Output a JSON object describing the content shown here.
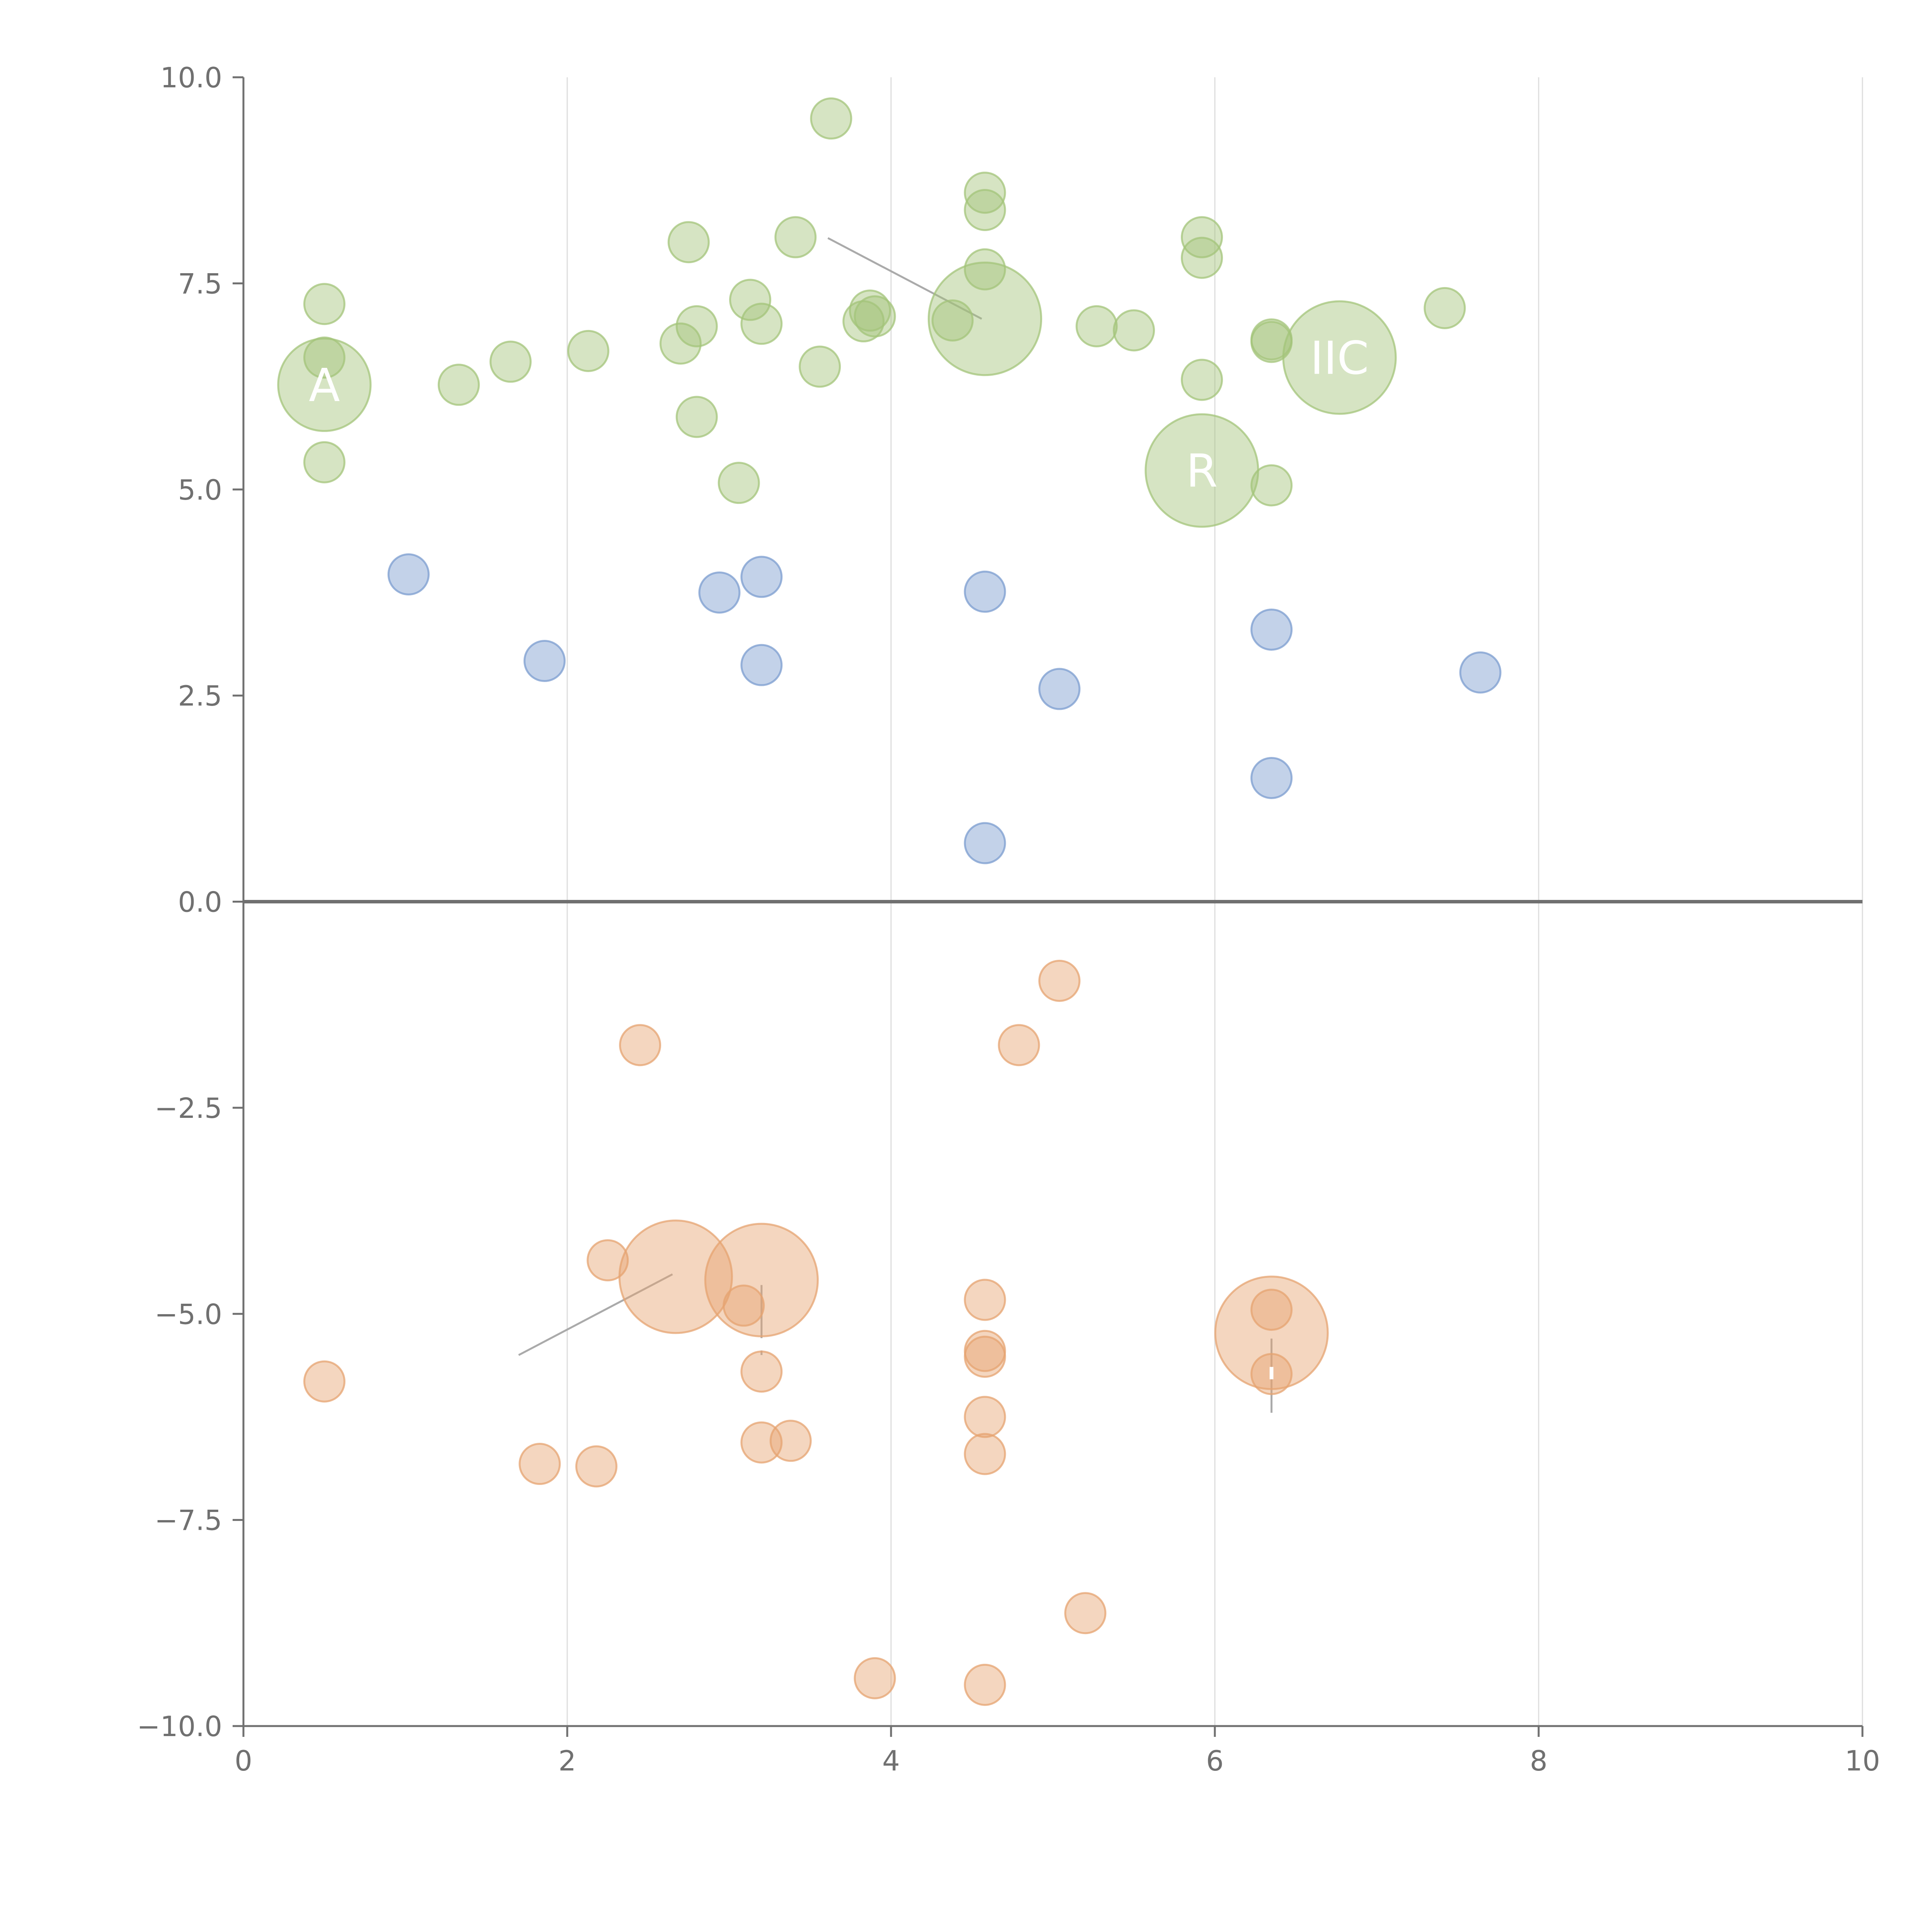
{
  "chart_data": {
    "type": "scatter",
    "title": "",
    "xlabel": "",
    "ylabel": "",
    "xlim": [
      0,
      10
    ],
    "ylim": [
      -10,
      10
    ],
    "x_ticks": [
      0,
      2,
      4,
      6,
      8,
      10
    ],
    "x_tick_labels": [
      "0",
      "2",
      "4",
      "6",
      "8",
      "10"
    ],
    "y_ticks": [
      10,
      7.5,
      5,
      2.5,
      0,
      -2.5,
      -5,
      -7.5,
      -10
    ],
    "y_tick_labels": [
      "10.0",
      "7.5",
      "5.0",
      "2.5",
      "0.0",
      "−2.5",
      "−5.0",
      "−7.5",
      "−10.0"
    ],
    "grid": "vertical",
    "zero_line": true,
    "colors": {
      "green": "#a3c47a",
      "blue": "#7b9ccf",
      "orange": "#e6a370",
      "grid": "#dddddd",
      "axis": "#707070",
      "leader": "#aaaaaa"
    },
    "series": [
      {
        "name": "green",
        "color": "#a3c47a",
        "points": [
          {
            "x": 0.5,
            "y": 7.25,
            "s": 1
          },
          {
            "x": 0.5,
            "y": 6.6,
            "s": 1
          },
          {
            "x": 0.5,
            "y": 6.27,
            "s": 2.3
          },
          {
            "x": 0.5,
            "y": 5.33,
            "s": 1
          },
          {
            "x": 1.33,
            "y": 6.27,
            "s": 1
          },
          {
            "x": 1.65,
            "y": 6.55,
            "s": 1
          },
          {
            "x": 2.13,
            "y": 6.68,
            "s": 1
          },
          {
            "x": 2.75,
            "y": 8.0,
            "s": 1
          },
          {
            "x": 2.7,
            "y": 6.77,
            "s": 1
          },
          {
            "x": 2.8,
            "y": 6.98,
            "s": 1
          },
          {
            "x": 2.8,
            "y": 5.88,
            "s": 1
          },
          {
            "x": 3.06,
            "y": 5.08,
            "s": 1
          },
          {
            "x": 3.13,
            "y": 7.3,
            "s": 1
          },
          {
            "x": 3.2,
            "y": 7.01,
            "s": 1
          },
          {
            "x": 3.41,
            "y": 8.06,
            "s": 1
          },
          {
            "x": 3.56,
            "y": 6.49,
            "s": 1
          },
          {
            "x": 3.63,
            "y": 9.5,
            "s": 1
          },
          {
            "x": 3.83,
            "y": 7.04,
            "s": 1
          },
          {
            "x": 3.87,
            "y": 7.17,
            "s": 1
          },
          {
            "x": 3.9,
            "y": 7.1,
            "s": 1
          },
          {
            "x": 4.38,
            "y": 7.05,
            "s": 1
          },
          {
            "x": 4.58,
            "y": 8.6,
            "s": 1
          },
          {
            "x": 4.58,
            "y": 8.39,
            "s": 1
          },
          {
            "x": 4.58,
            "y": 7.67,
            "s": 1
          },
          {
            "x": 4.58,
            "y": 7.07,
            "s": 2.8
          },
          {
            "x": 5.27,
            "y": 6.98,
            "s": 1
          },
          {
            "x": 5.5,
            "y": 6.93,
            "s": 1
          },
          {
            "x": 5.92,
            "y": 8.06,
            "s": 1
          },
          {
            "x": 5.92,
            "y": 7.81,
            "s": 1
          },
          {
            "x": 5.92,
            "y": 6.33,
            "s": 1
          },
          {
            "x": 5.92,
            "y": 5.23,
            "s": 2.8
          },
          {
            "x": 6.35,
            "y": 6.82,
            "s": 1
          },
          {
            "x": 6.35,
            "y": 6.79,
            "s": 1
          },
          {
            "x": 6.35,
            "y": 5.05,
            "s": 1
          },
          {
            "x": 6.77,
            "y": 6.6,
            "s": 2.8
          },
          {
            "x": 7.42,
            "y": 7.2,
            "s": 1
          }
        ]
      },
      {
        "name": "blue",
        "color": "#7b9ccf",
        "points": [
          {
            "x": 1.02,
            "y": 3.97,
            "s": 1
          },
          {
            "x": 1.86,
            "y": 2.92,
            "s": 1
          },
          {
            "x": 2.94,
            "y": 3.75,
            "s": 1
          },
          {
            "x": 3.2,
            "y": 3.94,
            "s": 1
          },
          {
            "x": 3.2,
            "y": 2.87,
            "s": 1
          },
          {
            "x": 4.58,
            "y": 3.76,
            "s": 1
          },
          {
            "x": 4.58,
            "y": 0.71,
            "s": 1
          },
          {
            "x": 5.04,
            "y": 2.58,
            "s": 1
          },
          {
            "x": 6.35,
            "y": 3.3,
            "s": 1
          },
          {
            "x": 6.35,
            "y": 1.5,
            "s": 1
          },
          {
            "x": 7.64,
            "y": 2.78,
            "s": 1
          }
        ]
      },
      {
        "name": "orange",
        "color": "#e6a370",
        "points": [
          {
            "x": 0.5,
            "y": -5.82,
            "s": 1
          },
          {
            "x": 1.83,
            "y": -6.82,
            "s": 1
          },
          {
            "x": 2.18,
            "y": -6.85,
            "s": 1
          },
          {
            "x": 2.25,
            "y": -4.35,
            "s": 1
          },
          {
            "x": 2.45,
            "y": -1.74,
            "s": 1
          },
          {
            "x": 2.67,
            "y": -4.55,
            "s": 2.8
          },
          {
            "x": 3.09,
            "y": -4.9,
            "s": 1
          },
          {
            "x": 3.2,
            "y": -4.59,
            "s": 2.8
          },
          {
            "x": 3.2,
            "y": -5.7,
            "s": 1
          },
          {
            "x": 3.2,
            "y": -6.56,
            "s": 1
          },
          {
            "x": 3.38,
            "y": -6.54,
            "s": 1
          },
          {
            "x": 3.9,
            "y": -9.42,
            "s": 1
          },
          {
            "x": 4.58,
            "y": -4.83,
            "s": 1
          },
          {
            "x": 4.58,
            "y": -5.45,
            "s": 1
          },
          {
            "x": 4.58,
            "y": -5.52,
            "s": 1
          },
          {
            "x": 4.58,
            "y": -6.25,
            "s": 1
          },
          {
            "x": 4.58,
            "y": -6.7,
            "s": 1
          },
          {
            "x": 4.58,
            "y": -9.5,
            "s": 1
          },
          {
            "x": 4.79,
            "y": -1.74,
            "s": 1
          },
          {
            "x": 5.04,
            "y": -0.96,
            "s": 1
          },
          {
            "x": 5.2,
            "y": -8.63,
            "s": 1
          },
          {
            "x": 6.35,
            "y": -4.95,
            "s": 1
          },
          {
            "x": 6.35,
            "y": -5.23,
            "s": 2.8
          },
          {
            "x": 6.35,
            "y": -5.73,
            "s": 1
          }
        ]
      }
    ],
    "leader_lines": [
      {
        "x1": 3.61,
        "y1": 8.05,
        "x2": 4.56,
        "y2": 7.07
      },
      {
        "x1": 1.7,
        "y1": -5.5,
        "x2": 2.65,
        "y2": -4.52
      },
      {
        "x1": 3.2,
        "y1": -4.65,
        "x2": 3.2,
        "y2": -5.5
      },
      {
        "x1": 6.35,
        "y1": -5.3,
        "x2": 6.35,
        "y2": -6.2
      }
    ],
    "annotations": [
      {
        "text": "A",
        "x": 0.5,
        "y": 6.27
      },
      {
        "text": "IIC",
        "x": 6.77,
        "y": 6.6
      },
      {
        "text": "R",
        "x": 5.92,
        "y": 5.23
      },
      {
        "text": "'",
        "x": 3.2,
        "y": -5.5
      },
      {
        "text": "'",
        "x": 6.35,
        "y": -5.85
      }
    ]
  }
}
